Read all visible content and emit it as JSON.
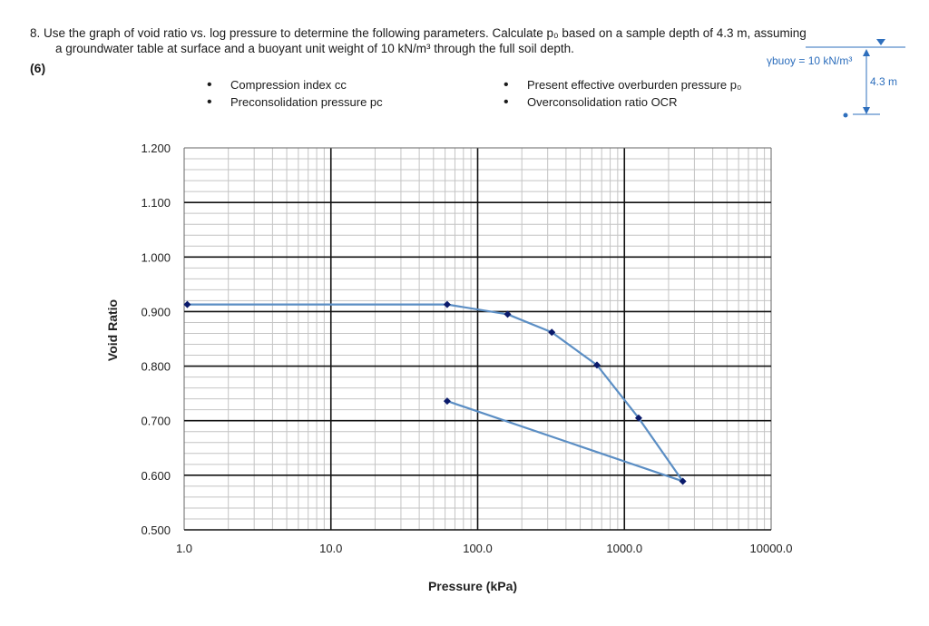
{
  "question": {
    "line1": "8.   Use the graph of void ratio vs. log pressure to determine the following parameters. Calculate p₀ based on a sample depth of 4.3 m, assuming",
    "line2": "a groundwater table at surface and a buoyant unit weight of 10 kN/m³ through the full soil depth.",
    "marks": "(6)"
  },
  "bullets_left": [
    "Compression index cᴄ",
    "Preconsolidation pressure pᴄ"
  ],
  "bullets_right": [
    "Present effective overburden pressure p₀",
    "Overconsolidation ratio OCR"
  ],
  "sketch": {
    "gamma_label": "γbuoy = 10 kN/m³",
    "depth_label": "4.3 m",
    "accent_color": "#2e6fbd"
  },
  "chart_data": {
    "type": "line",
    "title": "",
    "xlabel": "Pressure (kPa)",
    "ylabel": "Void Ratio",
    "x_scale": "log",
    "xlim": [
      1,
      10000
    ],
    "ylim": [
      0.5,
      1.2
    ],
    "grid": true,
    "x_tick_labels": [
      "1.0",
      "10.0",
      "100.0",
      "1000.0",
      "10000.0"
    ],
    "y_tick_labels": [
      "0.500",
      "0.600",
      "0.700",
      "0.800",
      "0.900",
      "1.000",
      "1.100",
      "1.200"
    ],
    "series_color": "#5b8ec4",
    "marker_color": "#0a1a6b",
    "series": [
      {
        "x": [
          1.05,
          62,
          160,
          320,
          650,
          1250,
          2500,
          62
        ],
        "y": [
          0.913,
          0.913,
          0.895,
          0.862,
          0.802,
          0.705,
          0.589,
          0.736
        ]
      }
    ]
  }
}
